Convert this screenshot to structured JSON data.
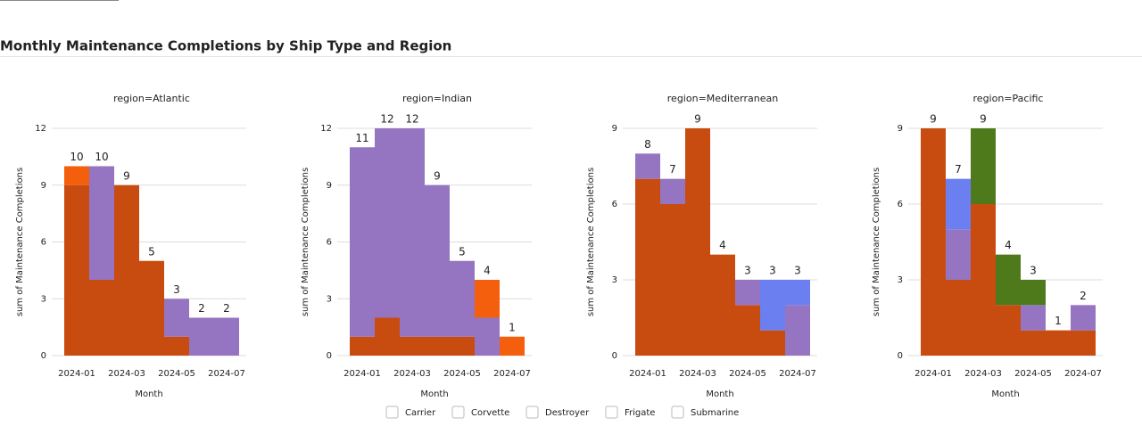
{
  "header": {
    "title": "Monthly Maintenance Completions by Ship Type and Region"
  },
  "chart_data": [
    {
      "type": "bar",
      "title": "region=Atlantic",
      "xlabel": "Month",
      "ylabel": "sum of Maintenance Completions",
      "categories": [
        "2024-01",
        null,
        "2024-03",
        null,
        "2024-05",
        null,
        "2024-07"
      ],
      "ylim": [
        0,
        12
      ],
      "yticks": [
        0,
        3,
        6,
        9,
        12
      ],
      "grid": true,
      "stacked": true,
      "series": [
        {
          "name": "Carrier",
          "color": "#c84c0f",
          "values": [
            9,
            4,
            9,
            5,
            1,
            0,
            0
          ],
          "stack_labels": [
            "9",
            "4",
            "9",
            "5",
            "1",
            null,
            null
          ]
        },
        {
          "name": "Corvette",
          "color": "#9575c2",
          "values": [
            0,
            6,
            0,
            0,
            2,
            2,
            2
          ],
          "stack_labels": [
            null,
            "10",
            null,
            null,
            "3",
            "2",
            "2"
          ]
        },
        {
          "name": "Destroyer",
          "color": "#6b7ff0",
          "values": [
            0,
            0,
            0,
            0,
            0,
            0,
            0
          ],
          "stack_labels": [
            null,
            null,
            null,
            null,
            null,
            null,
            null
          ]
        },
        {
          "name": "Frigate",
          "color": "#4e7a1c",
          "values": [
            0,
            0,
            0,
            0,
            0,
            0,
            0
          ],
          "stack_labels": [
            null,
            null,
            null,
            null,
            null,
            null,
            null
          ]
        },
        {
          "name": "Submarine",
          "color": "#f35f0c",
          "values": [
            1,
            0,
            0,
            0,
            0,
            0,
            0
          ],
          "stack_labels": [
            "10",
            null,
            null,
            null,
            null,
            null,
            null
          ]
        }
      ]
    },
    {
      "type": "bar",
      "title": "region=Indian",
      "xlabel": "Month",
      "ylabel": "sum of Maintenance Completions",
      "categories": [
        "2024-01",
        null,
        "2024-03",
        null,
        "2024-05",
        null,
        "2024-07"
      ],
      "ylim": [
        0,
        12
      ],
      "yticks": [
        0,
        3,
        6,
        9,
        12
      ],
      "grid": true,
      "stacked": true,
      "series": [
        {
          "name": "Carrier",
          "color": "#c84c0f",
          "values": [
            1,
            2,
            1,
            1,
            1,
            0,
            0
          ],
          "stack_labels": [
            "1",
            "2",
            "1",
            "1",
            "1",
            null,
            null
          ]
        },
        {
          "name": "Corvette",
          "color": "#9575c2",
          "values": [
            10,
            10,
            11,
            8,
            4,
            2,
            0
          ],
          "stack_labels": [
            "11",
            "12",
            "12",
            "9",
            "5",
            "2",
            null
          ]
        },
        {
          "name": "Destroyer",
          "color": "#6b7ff0",
          "values": [
            0,
            0,
            0,
            0,
            0,
            0,
            0
          ],
          "stack_labels": [
            null,
            null,
            null,
            null,
            null,
            null,
            null
          ]
        },
        {
          "name": "Frigate",
          "color": "#4e7a1c",
          "values": [
            0,
            0,
            0,
            0,
            0,
            0,
            0
          ],
          "stack_labels": [
            null,
            null,
            null,
            null,
            null,
            null,
            null
          ]
        },
        {
          "name": "Submarine",
          "color": "#f35f0c",
          "values": [
            0,
            0,
            0,
            0,
            0,
            2,
            1
          ],
          "stack_labels": [
            null,
            null,
            null,
            null,
            null,
            "4",
            "1"
          ]
        }
      ]
    },
    {
      "type": "bar",
      "title": "region=Mediterranean",
      "xlabel": "Month",
      "ylabel": "sum of Maintenance Completions",
      "categories": [
        "2024-01",
        null,
        "2024-03",
        null,
        "2024-05",
        null,
        "2024-07"
      ],
      "ylim": [
        0,
        9
      ],
      "yticks": [
        0,
        3,
        6,
        9
      ],
      "grid": true,
      "stacked": true,
      "series": [
        {
          "name": "Carrier",
          "color": "#c84c0f",
          "values": [
            7,
            6,
            9,
            4,
            2,
            1,
            0
          ],
          "stack_labels": [
            "7",
            "6",
            "9",
            "4",
            "2",
            "1",
            null
          ]
        },
        {
          "name": "Corvette",
          "color": "#9575c2",
          "values": [
            1,
            1,
            0,
            0,
            1,
            0,
            2
          ],
          "stack_labels": [
            "8",
            "7",
            null,
            null,
            "3",
            null,
            "2"
          ]
        },
        {
          "name": "Destroyer",
          "color": "#6b7ff0",
          "values": [
            0,
            0,
            0,
            0,
            0,
            2,
            1
          ],
          "stack_labels": [
            null,
            null,
            null,
            null,
            null,
            "3",
            "3"
          ]
        },
        {
          "name": "Frigate",
          "color": "#4e7a1c",
          "values": [
            0,
            0,
            0,
            0,
            0,
            0,
            0
          ],
          "stack_labels": [
            null,
            null,
            null,
            null,
            null,
            null,
            null
          ]
        },
        {
          "name": "Submarine",
          "color": "#f35f0c",
          "values": [
            0,
            0,
            0,
            0,
            0,
            0,
            0
          ],
          "stack_labels": [
            null,
            null,
            null,
            null,
            null,
            null,
            null
          ]
        }
      ]
    },
    {
      "type": "bar",
      "title": "region=Pacific",
      "xlabel": "Month",
      "ylabel": "sum of Maintenance Completions",
      "categories": [
        "2024-01",
        null,
        "2024-03",
        null,
        "2024-05",
        null,
        "2024-07"
      ],
      "ylim": [
        0,
        9
      ],
      "yticks": [
        0,
        3,
        6,
        9
      ],
      "grid": true,
      "stacked": true,
      "series": [
        {
          "name": "Carrier",
          "color": "#c84c0f",
          "values": [
            9,
            3,
            6,
            2,
            1,
            1,
            1
          ],
          "stack_labels": [
            "9",
            "3",
            "6",
            "2",
            "1",
            "1",
            "1"
          ]
        },
        {
          "name": "Corvette",
          "color": "#9575c2",
          "values": [
            0,
            2,
            0,
            0,
            1,
            0,
            1
          ],
          "stack_labels": [
            null,
            "5",
            null,
            null,
            "2",
            null,
            "2"
          ]
        },
        {
          "name": "Destroyer",
          "color": "#6b7ff0",
          "values": [
            0,
            2,
            0,
            0,
            0,
            0,
            0
          ],
          "stack_labels": [
            null,
            "7",
            null,
            null,
            null,
            null,
            null
          ]
        },
        {
          "name": "Frigate",
          "color": "#4e7a1c",
          "values": [
            0,
            0,
            3,
            2,
            1,
            0,
            0
          ],
          "stack_labels": [
            null,
            null,
            "9",
            "4",
            "3",
            null,
            null
          ]
        },
        {
          "name": "Submarine",
          "color": "#f35f0c",
          "values": [
            0,
            0,
            0,
            0,
            0,
            0,
            0
          ],
          "stack_labels": [
            null,
            null,
            null,
            null,
            null,
            null,
            null
          ]
        }
      ]
    }
  ]
}
